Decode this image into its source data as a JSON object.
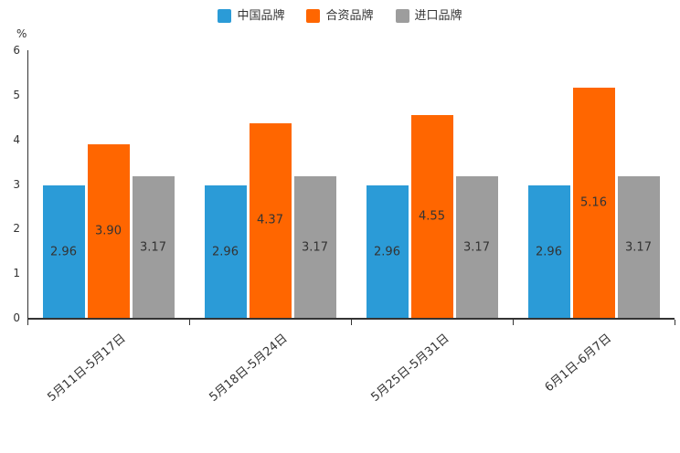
{
  "chart_data": {
    "type": "bar",
    "title": "",
    "xlabel": "",
    "ylabel": "%",
    "ylim": [
      0,
      6
    ],
    "yticks": [
      0,
      1,
      2,
      3,
      4,
      5,
      6
    ],
    "grid": false,
    "legend_position": "top-center",
    "categories": [
      "5月11日-5月17日",
      "5月18日-5月24日",
      "5月25日-5月31日",
      "6月1日-6月7日"
    ],
    "series": [
      {
        "name": "中国品牌",
        "color": "#2B9BD7",
        "values": [
          2.96,
          2.96,
          2.96,
          2.96
        ]
      },
      {
        "name": "合资品牌",
        "color": "#FF6600",
        "values": [
          3.9,
          4.37,
          4.55,
          5.16
        ]
      },
      {
        "name": "进口品牌",
        "color": "#9D9D9D",
        "values": [
          3.17,
          3.17,
          3.17,
          3.17
        ]
      }
    ],
    "value_label_decimals": 2
  }
}
